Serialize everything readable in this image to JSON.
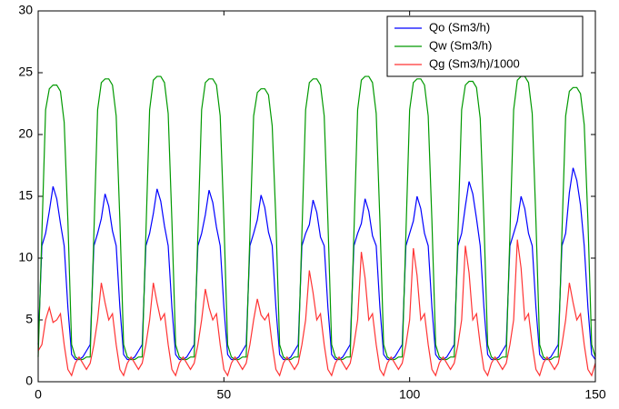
{
  "chart_data": {
    "type": "line",
    "x": [
      0,
      1,
      2,
      3,
      4,
      5,
      6,
      7,
      8,
      9,
      10,
      11,
      12,
      13,
      14,
      15,
      16,
      17,
      18,
      19,
      20,
      21,
      22,
      23,
      24,
      25,
      26,
      27,
      28,
      29,
      30,
      31,
      32,
      33,
      34,
      35,
      36,
      37,
      38,
      39,
      40,
      41,
      42,
      43,
      44,
      45,
      46,
      47,
      48,
      49,
      50,
      51,
      52,
      53,
      54,
      55,
      56,
      57,
      58,
      59,
      60,
      61,
      62,
      63,
      64,
      65,
      66,
      67,
      68,
      69,
      70,
      71,
      72,
      73,
      74,
      75,
      76,
      77,
      78,
      79,
      80,
      81,
      82,
      83,
      84,
      85,
      86,
      87,
      88,
      89,
      90,
      91,
      92,
      93,
      94,
      95,
      96,
      97,
      98,
      99,
      100,
      101,
      102,
      103,
      104,
      105,
      106,
      107,
      108,
      109,
      110,
      111,
      112,
      113,
      114,
      115,
      116,
      117,
      118,
      119,
      120,
      121,
      122,
      123,
      124,
      125,
      126,
      127,
      128,
      129,
      130,
      131,
      132,
      133,
      134,
      135,
      136,
      137,
      138,
      139,
      140,
      141,
      142,
      143,
      144,
      145,
      146,
      147,
      148,
      149,
      150
    ],
    "series": [
      {
        "name": "Qo (Sm3/h)",
        "color": "#0000ff",
        "values": [
          3,
          11,
          12,
          13.8,
          15.8,
          14.8,
          12.8,
          11,
          6,
          2.2,
          1.8,
          1.8,
          2,
          2.5,
          3,
          11,
          12,
          13.2,
          15.2,
          14.2,
          12.2,
          11,
          6,
          2.2,
          1.8,
          1.8,
          2,
          2.5,
          3,
          11,
          12,
          13.6,
          15.6,
          14.6,
          12.6,
          11,
          6,
          2.2,
          1.8,
          1.8,
          2,
          2.5,
          3,
          11,
          12,
          13.5,
          15.5,
          14.5,
          12.5,
          11,
          6,
          2.2,
          1.8,
          1.8,
          2,
          2.5,
          3,
          11,
          12,
          13.1,
          15.1,
          14.1,
          12.1,
          11,
          6,
          2.2,
          1.8,
          1.8,
          2,
          2.5,
          3,
          11,
          12,
          12.7,
          14.7,
          13.7,
          11.7,
          11,
          6,
          2.2,
          1.8,
          1.8,
          2,
          2.5,
          3,
          11,
          12,
          12.8,
          14.8,
          13.8,
          11.8,
          11,
          6,
          2.2,
          1.8,
          1.8,
          2,
          2.5,
          3,
          11,
          12,
          13,
          15,
          14,
          12,
          11,
          6,
          2.2,
          1.8,
          1.8,
          2,
          2.5,
          3,
          11,
          12,
          14.2,
          16.2,
          15.2,
          13.2,
          11,
          6,
          2.2,
          1.8,
          1.8,
          2,
          2.5,
          3,
          11,
          12,
          13,
          15,
          14,
          12,
          11,
          6,
          2.2,
          1.8,
          1.8,
          2,
          2.5,
          3,
          11,
          12,
          15.3,
          17.3,
          16.3,
          14.3,
          11,
          6,
          2.2,
          1.8
        ]
      },
      {
        "name": "Qw (Sm3/h)",
        "color": "#009900",
        "values": [
          2,
          12,
          22,
          23.7,
          24,
          24,
          23.5,
          21,
          13,
          3,
          2,
          1.8,
          1.8,
          2,
          2,
          12,
          22,
          24.2,
          24.5,
          24.5,
          24,
          21.5,
          13,
          3,
          2,
          1.8,
          1.8,
          2,
          2,
          12,
          22,
          24.4,
          24.7,
          24.7,
          24.2,
          21.7,
          13,
          3,
          2,
          1.8,
          1.8,
          2,
          2,
          12,
          22,
          24.2,
          24.5,
          24.5,
          24,
          21.5,
          13,
          3,
          2,
          1.8,
          1.8,
          2,
          2,
          12,
          21.5,
          23.4,
          23.7,
          23.7,
          23.2,
          20.7,
          13,
          3,
          2,
          1.8,
          1.8,
          2,
          2,
          12,
          22,
          24.2,
          24.5,
          24.5,
          24,
          21.5,
          13,
          3,
          2,
          1.8,
          1.8,
          2,
          2,
          12,
          22,
          24.4,
          24.7,
          24.7,
          24.2,
          21.7,
          13,
          3,
          2,
          1.8,
          1.8,
          2,
          2,
          12,
          22,
          24.2,
          24.5,
          24.5,
          24,
          21.5,
          13,
          3,
          2,
          1.8,
          1.8,
          2,
          2,
          12,
          22,
          24,
          24.3,
          24.3,
          23.8,
          21.3,
          13,
          3,
          2,
          1.8,
          1.8,
          2,
          2,
          12,
          22,
          24.4,
          24.7,
          24.7,
          24.2,
          21.7,
          13,
          3,
          2,
          1.8,
          1.8,
          2,
          2,
          12,
          21.5,
          23.5,
          23.8,
          23.8,
          23.3,
          20.8,
          13,
          3,
          2
        ]
      },
      {
        "name": "Qg (Sm3/h)/1000",
        "color": "#ff3333",
        "values": [
          2.5,
          3,
          5,
          6,
          4.8,
          5,
          5.5,
          3,
          1,
          0.5,
          1.5,
          2,
          1.5,
          1,
          1.5,
          3,
          5,
          8,
          6.4,
          5,
          5.5,
          3,
          1,
          0.5,
          1.5,
          2,
          1.5,
          1,
          1.5,
          3,
          5,
          8,
          6.4,
          5,
          5.5,
          3,
          1,
          0.5,
          1.5,
          2,
          1.5,
          1,
          1.5,
          3,
          5,
          7.5,
          6,
          5,
          5.5,
          3,
          1,
          0.5,
          1.5,
          2,
          1.5,
          1,
          1.5,
          3,
          5,
          6.7,
          5.4,
          5,
          5.5,
          3,
          1,
          0.5,
          1.5,
          2,
          1.5,
          1,
          1.5,
          3,
          5,
          9,
          7.2,
          5,
          5.5,
          3,
          1,
          0.5,
          1.5,
          2,
          1.5,
          1,
          1.5,
          3,
          5,
          10.5,
          8.4,
          5,
          5.5,
          3,
          1,
          0.5,
          1.5,
          2,
          1.5,
          1,
          1.5,
          3,
          5,
          10.8,
          8.6,
          5,
          5.5,
          3,
          1,
          0.5,
          1.5,
          2,
          1.5,
          1,
          1.5,
          3,
          5,
          11,
          8.8,
          5,
          5.5,
          3,
          1,
          0.5,
          1.5,
          2,
          1.5,
          1,
          1.5,
          3,
          5,
          11.5,
          9.2,
          5,
          5.5,
          3,
          1,
          0.5,
          1.5,
          2,
          1.5,
          1,
          1.5,
          3,
          5,
          8,
          6.4,
          5,
          5.5,
          3,
          1,
          0.5,
          1.5
        ]
      }
    ],
    "xlim": [
      0,
      150
    ],
    "xticks": [
      0,
      50,
      100,
      150
    ],
    "ylim": [
      0,
      30
    ],
    "yticks": [
      0,
      5,
      10,
      15,
      20,
      25,
      30
    ],
    "grid": false,
    "legend": "top-right"
  }
}
